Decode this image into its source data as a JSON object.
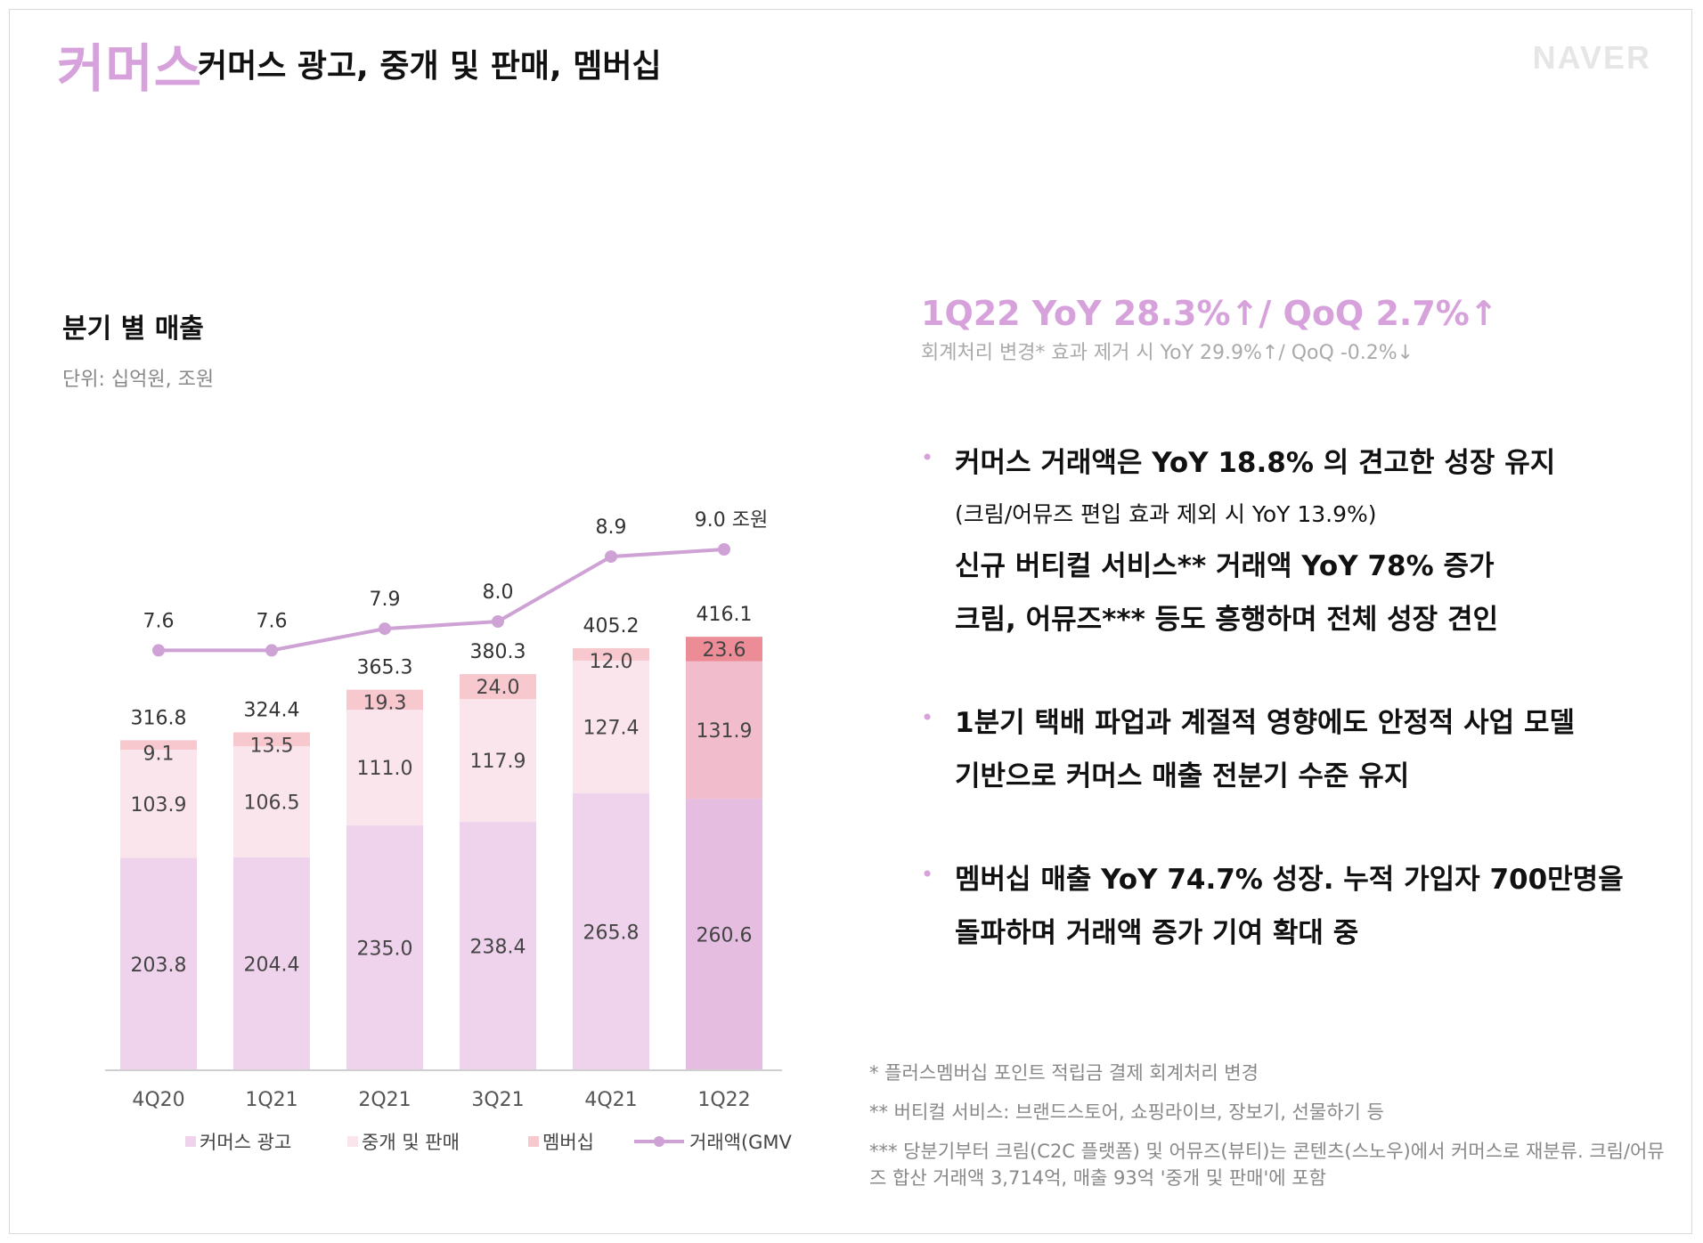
{
  "header": {
    "section": "커머스",
    "title": "커머스 광고, 중개 및 판매, 멤버십",
    "logo": "NAVER"
  },
  "chart_title": "분기 별 매출",
  "unit": "단위: 십억원, 조원",
  "kpi": {
    "main": "1Q22 YoY 28.3%↑/ QoQ 2.7%↑",
    "sub": "회계처리 변경* 효과 제거 시 YoY 29.9%↑/ QoQ -0.2%↓"
  },
  "bullets": [
    {
      "lines": [
        {
          "text": "커머스 거래액은 YoY 18.8% 의 견고한 성장 유지",
          "small": false
        },
        {
          "text": "(크림/어뮤즈 편입 효과 제외 시 YoY 13.9%)",
          "small": true
        },
        {
          "text": "신규 버티컬 서비스** 거래액 YoY 78% 증가",
          "small": false
        },
        {
          "text": "크림, 어뮤즈*** 등도 흥행하며 전체 성장 견인",
          "small": false
        }
      ]
    },
    {
      "lines": [
        {
          "text": "1분기 택배 파업과 계절적 영향에도 안정적 사업 모델",
          "small": false
        },
        {
          "text": "기반으로 커머스 매출 전분기 수준 유지",
          "small": false
        }
      ]
    },
    {
      "lines": [
        {
          "text": "멤버십 매출 YoY 74.7% 성장. 누적 가입자 700만명을",
          "small": false
        },
        {
          "text": "돌파하며 거래액 증가 기여 확대 중",
          "small": false
        }
      ]
    }
  ],
  "notes": [
    "* 플러스멤버십 포인트 적립금 결제 회계처리 변경",
    "** 버티컬 서비스: 브랜드스토어, 쇼핑라이브, 장보기, 선물하기 등",
    "*** 당분기부터 크림(C2C 플랫폼) 및 어뮤즈(뷰티)는 콘텐츠(스노우)에서 커머스로 재분류. 크림/어뮤즈 합산 거래액 3,714억, 매출 93억 '중개 및 판매'에 포함"
  ],
  "chart_data": {
    "type": "bar",
    "stacked": true,
    "categories": [
      "4Q20",
      "1Q21",
      "2Q21",
      "3Q21",
      "4Q21",
      "1Q22"
    ],
    "series": [
      {
        "name": "커머스 광고",
        "values": [
          203.8,
          204.4,
          235.0,
          238.4,
          265.8,
          260.6
        ],
        "color": "#efd3ec",
        "highlight_color": "#e4bde1"
      },
      {
        "name": "중개 및 판매",
        "values": [
          103.9,
          106.5,
          111.0,
          117.9,
          127.4,
          131.9
        ],
        "color": "#fbe5ed",
        "highlight_color": "#f1bccb"
      },
      {
        "name": "멤버십",
        "values": [
          9.1,
          13.5,
          19.3,
          24.0,
          12.0,
          23.6
        ],
        "color": "#f8c8cf",
        "highlight_color": "#ec8c96"
      }
    ],
    "totals": [
      316.8,
      324.4,
      365.3,
      380.3,
      405.2,
      416.1
    ],
    "line_series": {
      "name": "거래액(GMV)",
      "values": [
        7.6,
        7.6,
        7.9,
        8.0,
        8.9,
        9.0
      ],
      "color": "#cfa2d6",
      "last_label_suffix": " 조원"
    },
    "legend_position": "bottom",
    "grid": false
  }
}
